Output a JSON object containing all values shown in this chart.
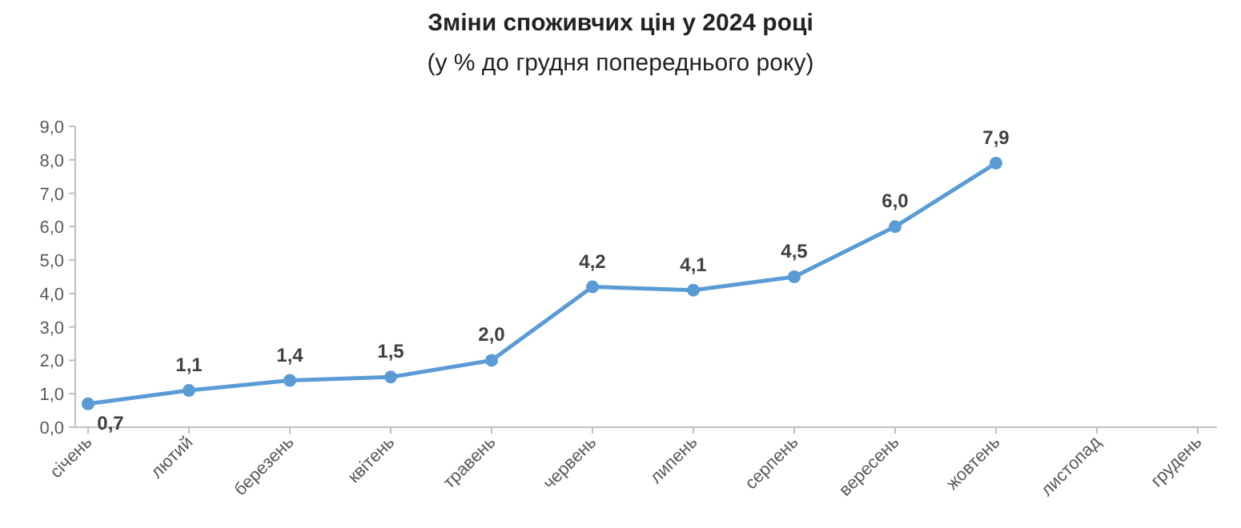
{
  "chart_data": {
    "type": "line",
    "title": "Зміни споживчих цін у 2024 році",
    "subtitle": "(у % до грудня попереднього року)",
    "categories": [
      "січень",
      "лютий",
      "березень",
      "квітень",
      "травень",
      "червень",
      "липень",
      "серпень",
      "вересень",
      "жовтень",
      "листопад",
      "грудень"
    ],
    "series": [
      {
        "color": "#5b9bd5",
        "values": [
          0.7,
          1.1,
          1.4,
          1.5,
          2.0,
          4.2,
          4.1,
          4.5,
          6.0,
          7.9,
          null,
          null
        ],
        "value_labels": [
          "0,7",
          "1,1",
          "1,4",
          "1,5",
          "2,0",
          "4,2",
          "4,1",
          "4,5",
          "6,0",
          "7,9",
          null,
          null
        ]
      }
    ],
    "ylim": [
      0,
      9
    ],
    "yticks": [
      {
        "value": 0,
        "label": "0,0"
      },
      {
        "value": 1,
        "label": "1,0"
      },
      {
        "value": 2,
        "label": "2,0"
      },
      {
        "value": 3,
        "label": "3,0"
      },
      {
        "value": 4,
        "label": "4,0"
      },
      {
        "value": 5,
        "label": "5,0"
      },
      {
        "value": 6,
        "label": "6,0"
      },
      {
        "value": 7,
        "label": "7,0"
      },
      {
        "value": 8,
        "label": "8,0"
      },
      {
        "value": 9,
        "label": "9,0"
      }
    ],
    "grid": false,
    "marker": "circle",
    "line_style": "solid"
  }
}
